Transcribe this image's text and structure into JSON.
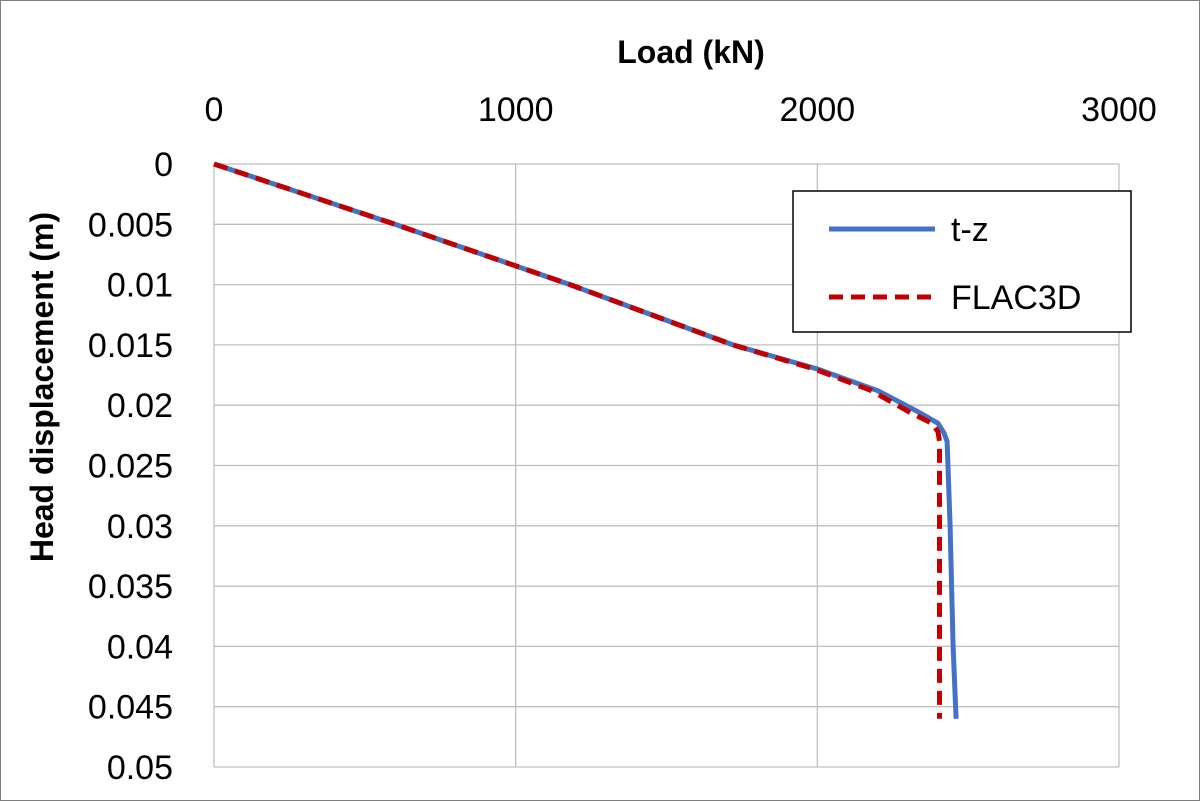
{
  "chart_data": {
    "type": "line",
    "xlabel": "Load (kN)",
    "ylabel": "Head displacement  (m)",
    "xlim": [
      0,
      3000
    ],
    "ylim": [
      0,
      0.05
    ],
    "x_axis_position": "top",
    "y_axis_reversed": true,
    "grid": true,
    "x_ticks": [
      "0",
      "1000",
      "2000",
      "3000"
    ],
    "y_ticks": [
      "0",
      "0.005",
      "0.01",
      "0.015",
      "0.02",
      "0.025",
      "0.03",
      "0.035",
      "0.04",
      "0.045",
      "0.05"
    ],
    "legend_position": "top-right",
    "series": [
      {
        "name": "t-z",
        "color": "#4472c4",
        "style": "solid",
        "points": [
          [
            0,
            0
          ],
          [
            600,
            0.005
          ],
          [
            1180,
            0.01
          ],
          [
            1720,
            0.015
          ],
          [
            2000,
            0.017
          ],
          [
            2200,
            0.0188
          ],
          [
            2330,
            0.0205
          ],
          [
            2400,
            0.0215
          ],
          [
            2420,
            0.0223
          ],
          [
            2430,
            0.023
          ],
          [
            2440,
            0.03
          ],
          [
            2450,
            0.04
          ],
          [
            2460,
            0.046
          ]
        ]
      },
      {
        "name": "FLAC3D",
        "color": "#c00000",
        "style": "dashed",
        "points": [
          [
            0,
            0
          ],
          [
            600,
            0.005
          ],
          [
            1180,
            0.01
          ],
          [
            1720,
            0.015
          ],
          [
            1990,
            0.017
          ],
          [
            2180,
            0.0188
          ],
          [
            2300,
            0.0205
          ],
          [
            2380,
            0.0215
          ],
          [
            2400,
            0.0222
          ],
          [
            2405,
            0.023
          ],
          [
            2405,
            0.03
          ],
          [
            2405,
            0.04
          ],
          [
            2405,
            0.046
          ]
        ]
      }
    ]
  }
}
